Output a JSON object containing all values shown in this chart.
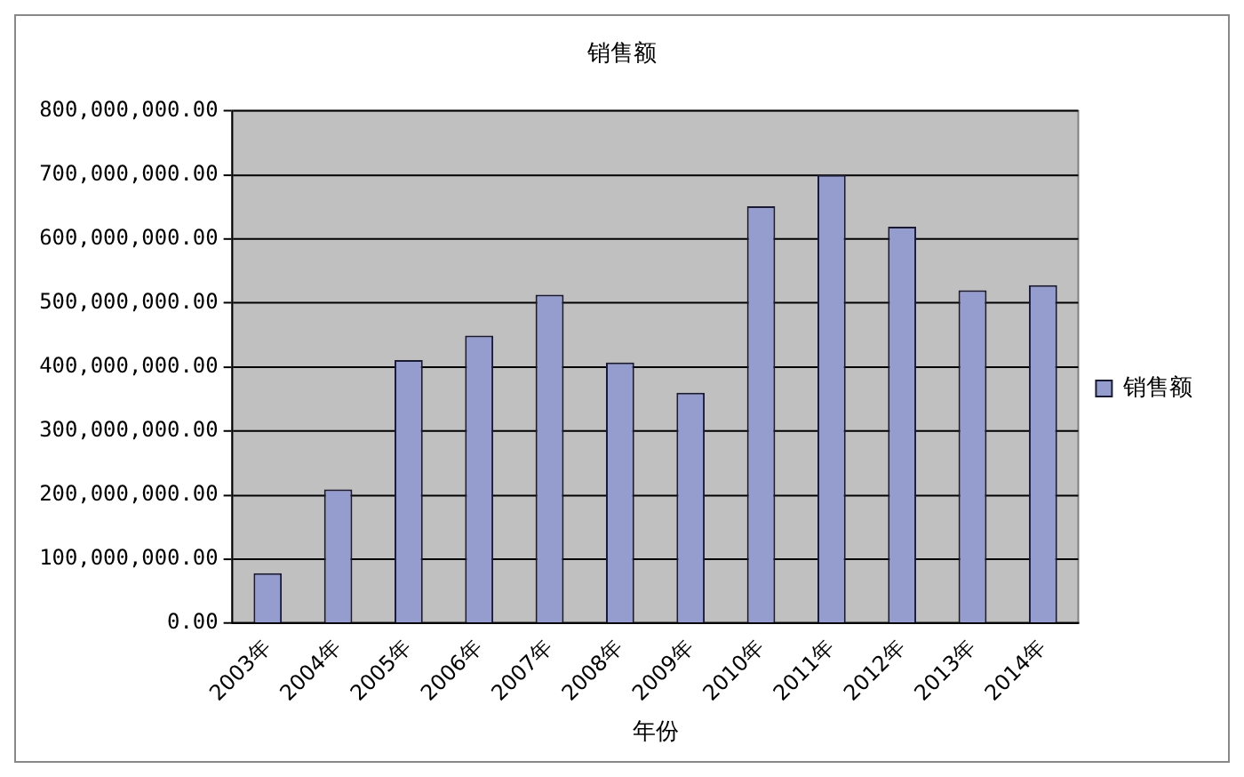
{
  "chart_data": {
    "type": "bar",
    "title": "销售额",
    "xlabel": "年份",
    "categories": [
      "2003年",
      "2004年",
      "2005年",
      "2006年",
      "2007年",
      "2008年",
      "2009年",
      "2010年",
      "2011年",
      "2012年",
      "2013年",
      "2014年"
    ],
    "series": [
      {
        "name": "销售额",
        "color": "#959cce",
        "values": [
          78000000,
          209000000,
          411000000,
          449000000,
          513000000,
          407000000,
          360000000,
          651000000,
          700000000,
          619000000,
          520000000,
          528000000
        ]
      }
    ],
    "ylim": [
      0,
      800000000
    ],
    "yticks": [
      {
        "value": 0,
        "label": "0.00"
      },
      {
        "value": 100000000,
        "label": "100,000,000.00"
      },
      {
        "value": 200000000,
        "label": "200,000,000.00"
      },
      {
        "value": 300000000,
        "label": "300,000,000.00"
      },
      {
        "value": 400000000,
        "label": "400,000,000.00"
      },
      {
        "value": 500000000,
        "label": "500,000,000.00"
      },
      {
        "value": 600000000,
        "label": "600,000,000.00"
      },
      {
        "value": 700000000,
        "label": "700,000,000.00"
      },
      {
        "value": 800000000,
        "label": "800,000,000.00"
      }
    ],
    "grid": "y",
    "legend": "right"
  }
}
